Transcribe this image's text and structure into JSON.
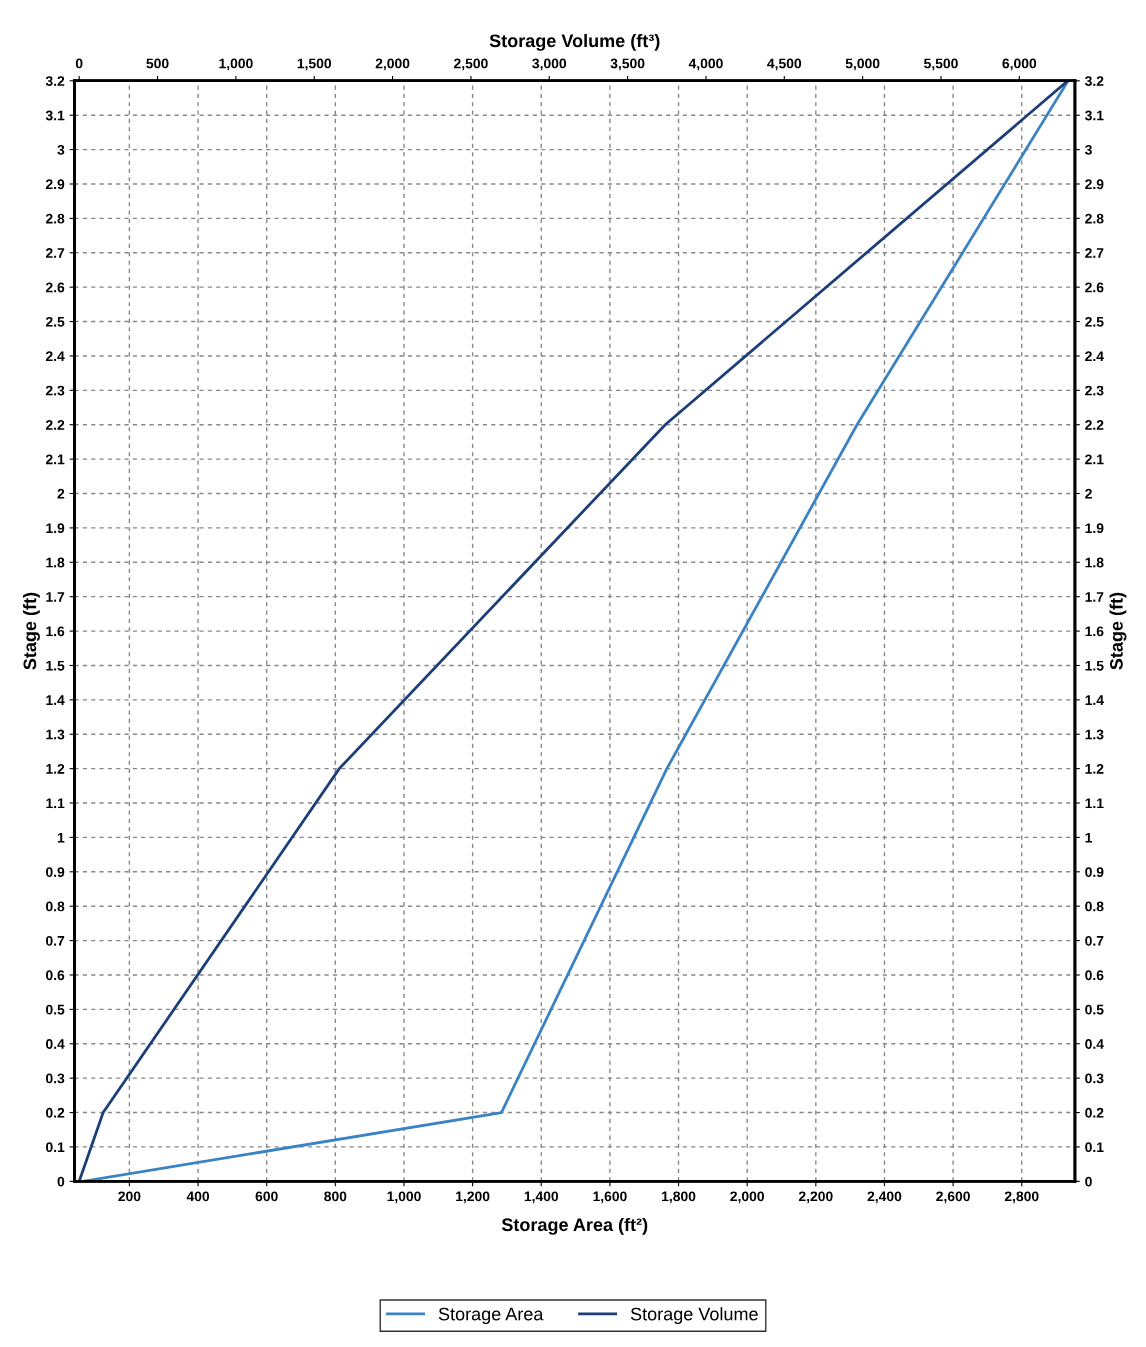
{
  "chart_data": {
    "type": "line",
    "xlabel": "Storage Area (ft²)",
    "x2label": "Storage Volume (ft³)",
    "ylabel": "Stage (ft)",
    "y2label": "Stage (ft)",
    "series": [
      {
        "name": "Storage Area",
        "color": "#3a82c4",
        "x": [
          65,
          1284,
          1766,
          2320,
          2935
        ],
        "values": [
          0,
          0.2,
          1.2,
          2.2,
          3.2
        ]
      },
      {
        "name": "Storage Volume",
        "color": "#1c3f7a",
        "axis": "x2",
        "x": [
          0,
          153,
          1660,
          3740,
          6309
        ],
        "values": [
          0,
          0.2,
          1.2,
          2.2,
          3.2
        ]
      }
    ],
    "xlim": [
      40,
      2955
    ],
    "xticks": [
      200,
      400,
      600,
      800,
      {
        "value": 1000,
        "label": "1,000"
      },
      {
        "value": 1200,
        "label": "1,200"
      },
      {
        "value": 1400,
        "label": "1,400"
      },
      {
        "value": 1600,
        "label": "1,600"
      },
      {
        "value": 1800,
        "label": "1,800"
      },
      {
        "value": 2000,
        "label": "2,000"
      },
      {
        "value": 2200,
        "label": "2,200"
      },
      {
        "value": 2400,
        "label": "2,400"
      },
      {
        "value": 2600,
        "label": "2,600"
      },
      {
        "value": 2800,
        "label": "2,800"
      }
    ],
    "x2lim": [
      -30,
      6355
    ],
    "x2ticks": [
      0,
      500,
      {
        "value": 1000,
        "label": "1,000"
      },
      {
        "value": 1500,
        "label": "1,500"
      },
      {
        "value": 2000,
        "label": "2,000"
      },
      {
        "value": 2500,
        "label": "2,500"
      },
      {
        "value": 3000,
        "label": "3,000"
      },
      {
        "value": 3500,
        "label": "3,500"
      },
      {
        "value": 4000,
        "label": "4,000"
      },
      {
        "value": 4500,
        "label": "4,500"
      },
      {
        "value": 5000,
        "label": "5,000"
      },
      {
        "value": 5500,
        "label": "5,500"
      },
      {
        "value": 6000,
        "label": "6,000"
      }
    ],
    "ylim": [
      0,
      3.2
    ],
    "yticks": [
      0,
      0.1,
      0.2,
      0.3,
      0.4,
      0.5,
      0.6,
      0.7,
      0.8,
      0.9,
      {
        "value": 1,
        "label": "1"
      },
      1.1,
      1.2,
      1.3,
      1.4,
      1.5,
      1.6,
      1.7,
      1.8,
      1.9,
      {
        "value": 2,
        "label": "2"
      },
      2.1,
      2.2,
      2.3,
      2.4,
      2.5,
      2.6,
      2.7,
      2.8,
      2.9,
      {
        "value": 3,
        "label": "3"
      },
      3.1,
      3.2
    ],
    "y2lim": [
      0,
      3.2
    ],
    "y2ticks": [
      0,
      0.1,
      0.2,
      0.3,
      0.4,
      0.5,
      0.6,
      0.7,
      0.8,
      0.9,
      {
        "value": 1,
        "label": "1"
      },
      1.1,
      1.2,
      1.3,
      1.4,
      1.5,
      1.6,
      1.7,
      1.8,
      1.9,
      {
        "value": 2,
        "label": "2"
      },
      2.1,
      2.2,
      2.3,
      2.4,
      2.5,
      2.6,
      2.7,
      2.8,
      2.9,
      {
        "value": 3,
        "label": "3"
      },
      3.1,
      3.2
    ],
    "grid": true,
    "legend": "bottom",
    "marker": "none",
    "line_style": "solid"
  }
}
